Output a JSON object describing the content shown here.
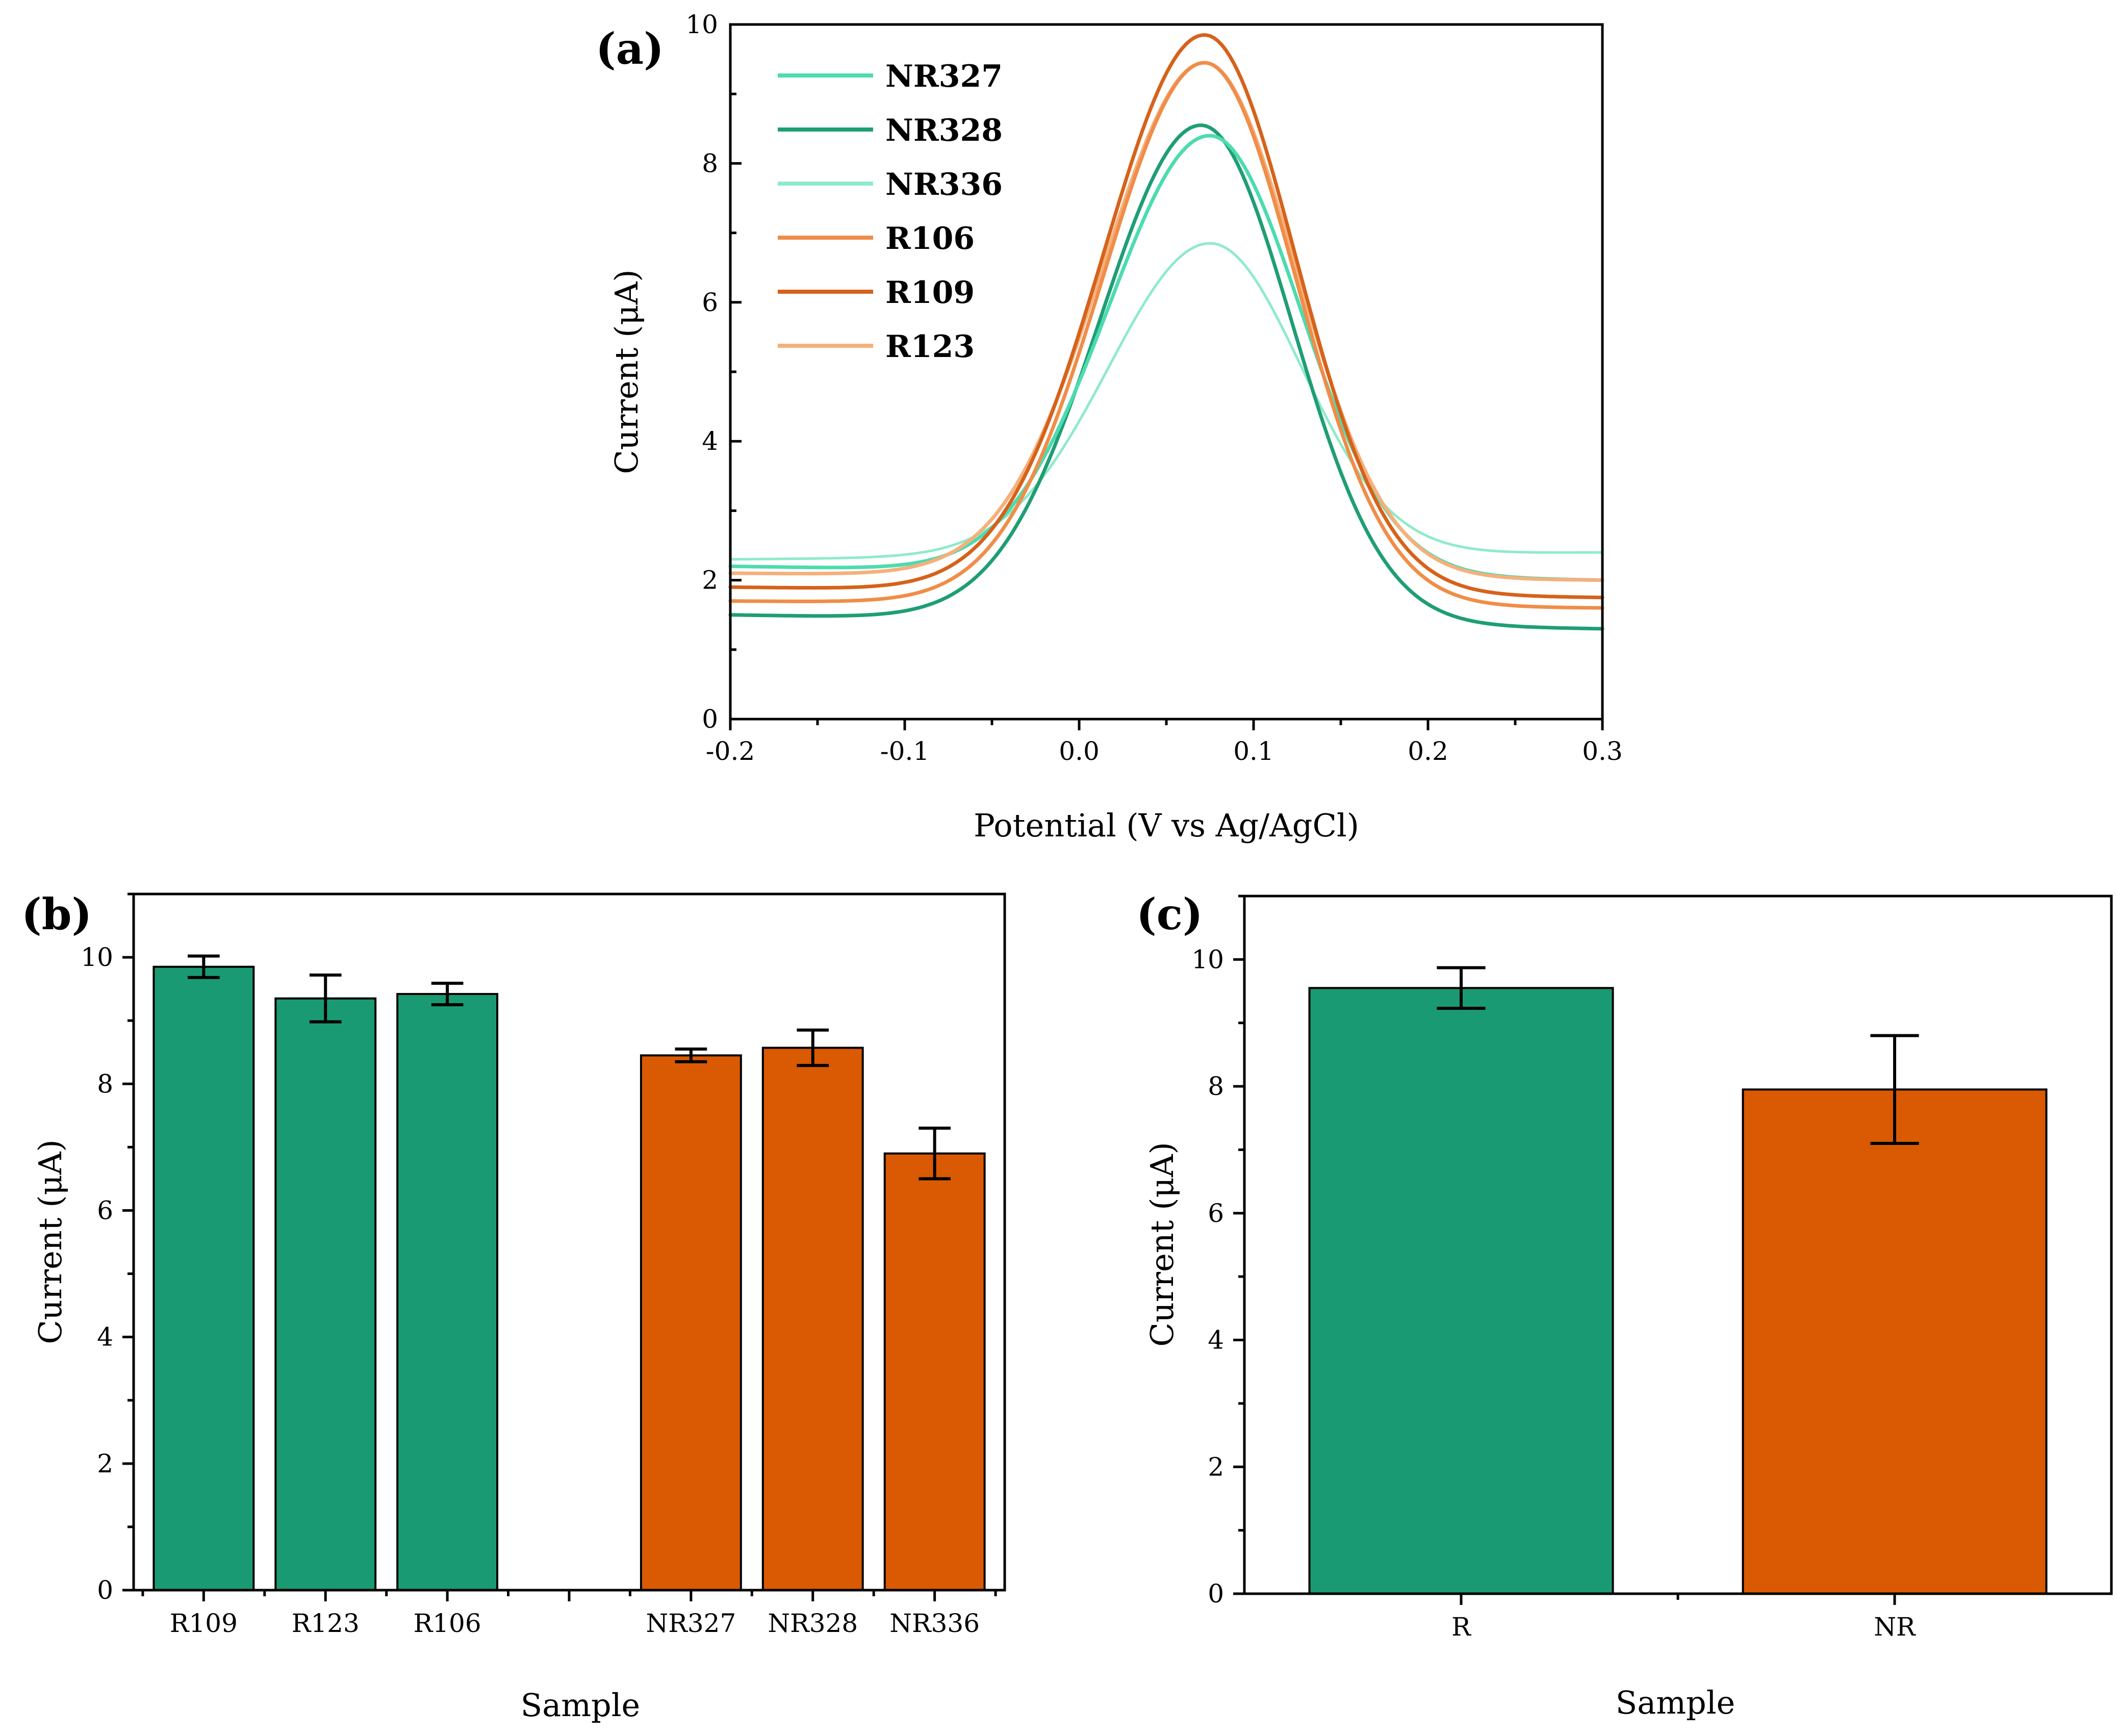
{
  "colors": {
    "R": "#1a9a72",
    "NR": "#d95a02",
    "NR327": "#4ddbb0",
    "NR328": "#1f9e74",
    "NR336": "#8eebc9",
    "R106": "#f08d48",
    "R109": "#d6621a",
    "R123": "#f5b07c"
  },
  "chart_data": [
    {
      "panel_label": "(a)",
      "type": "line",
      "title": "",
      "xlabel": "Potential (V vs Ag/AgCl)",
      "ylabel": "Current (μA)",
      "xlim": [
        -0.2,
        0.3
      ],
      "ylim": [
        0,
        10
      ],
      "xticks": [
        "-0.2",
        "-0.1",
        "0.0",
        "0.1",
        "0.2",
        "0.3"
      ],
      "yticks": [
        "0",
        "2",
        "4",
        "6",
        "8",
        "10"
      ],
      "legend_position": "top-left",
      "grid": false,
      "series": [
        {
          "name": "NR327",
          "baseline_left": 2.2,
          "baseline_right": 2.0,
          "peak_x": 0.075,
          "peak_y": 8.4
        },
        {
          "name": "NR328",
          "baseline_left": 1.5,
          "baseline_right": 1.3,
          "peak_x": 0.07,
          "peak_y": 8.55
        },
        {
          "name": "NR336",
          "baseline_left": 2.3,
          "baseline_right": 2.4,
          "peak_x": 0.075,
          "peak_y": 6.85
        },
        {
          "name": "R106",
          "baseline_left": 1.7,
          "baseline_right": 1.6,
          "peak_x": 0.072,
          "peak_y": 9.45
        },
        {
          "name": "R109",
          "baseline_left": 1.9,
          "baseline_right": 1.75,
          "peak_x": 0.072,
          "peak_y": 9.85
        },
        {
          "name": "R123",
          "baseline_left": 2.1,
          "baseline_right": 2.0,
          "peak_x": 0.072,
          "peak_y": 9.45
        }
      ]
    },
    {
      "panel_label": "(b)",
      "type": "bar",
      "title": "",
      "xlabel": "Sample",
      "ylabel": "Current (μA)",
      "ylim": [
        0,
        11
      ],
      "yticks": [
        "0",
        "2",
        "4",
        "6",
        "8",
        "10"
      ],
      "categories": [
        "R109",
        "R123",
        "R106",
        "NR327",
        "NR328",
        "NR336"
      ],
      "values": [
        9.85,
        9.35,
        9.42,
        8.45,
        8.57,
        6.9
      ],
      "errors": [
        0.17,
        0.37,
        0.17,
        0.1,
        0.28,
        0.4
      ],
      "groups": [
        "R",
        "R",
        "R",
        "NR",
        "NR",
        "NR"
      ]
    },
    {
      "panel_label": "(c)",
      "type": "bar",
      "title": "",
      "xlabel": "Sample",
      "ylabel": "Current (μA)",
      "ylim": [
        0,
        11
      ],
      "yticks": [
        "0",
        "2",
        "4",
        "6",
        "8",
        "10"
      ],
      "categories": [
        "R",
        "NR"
      ],
      "values": [
        9.55,
        7.95
      ],
      "errors": [
        0.32,
        0.85
      ],
      "groups": [
        "R",
        "NR"
      ]
    }
  ]
}
